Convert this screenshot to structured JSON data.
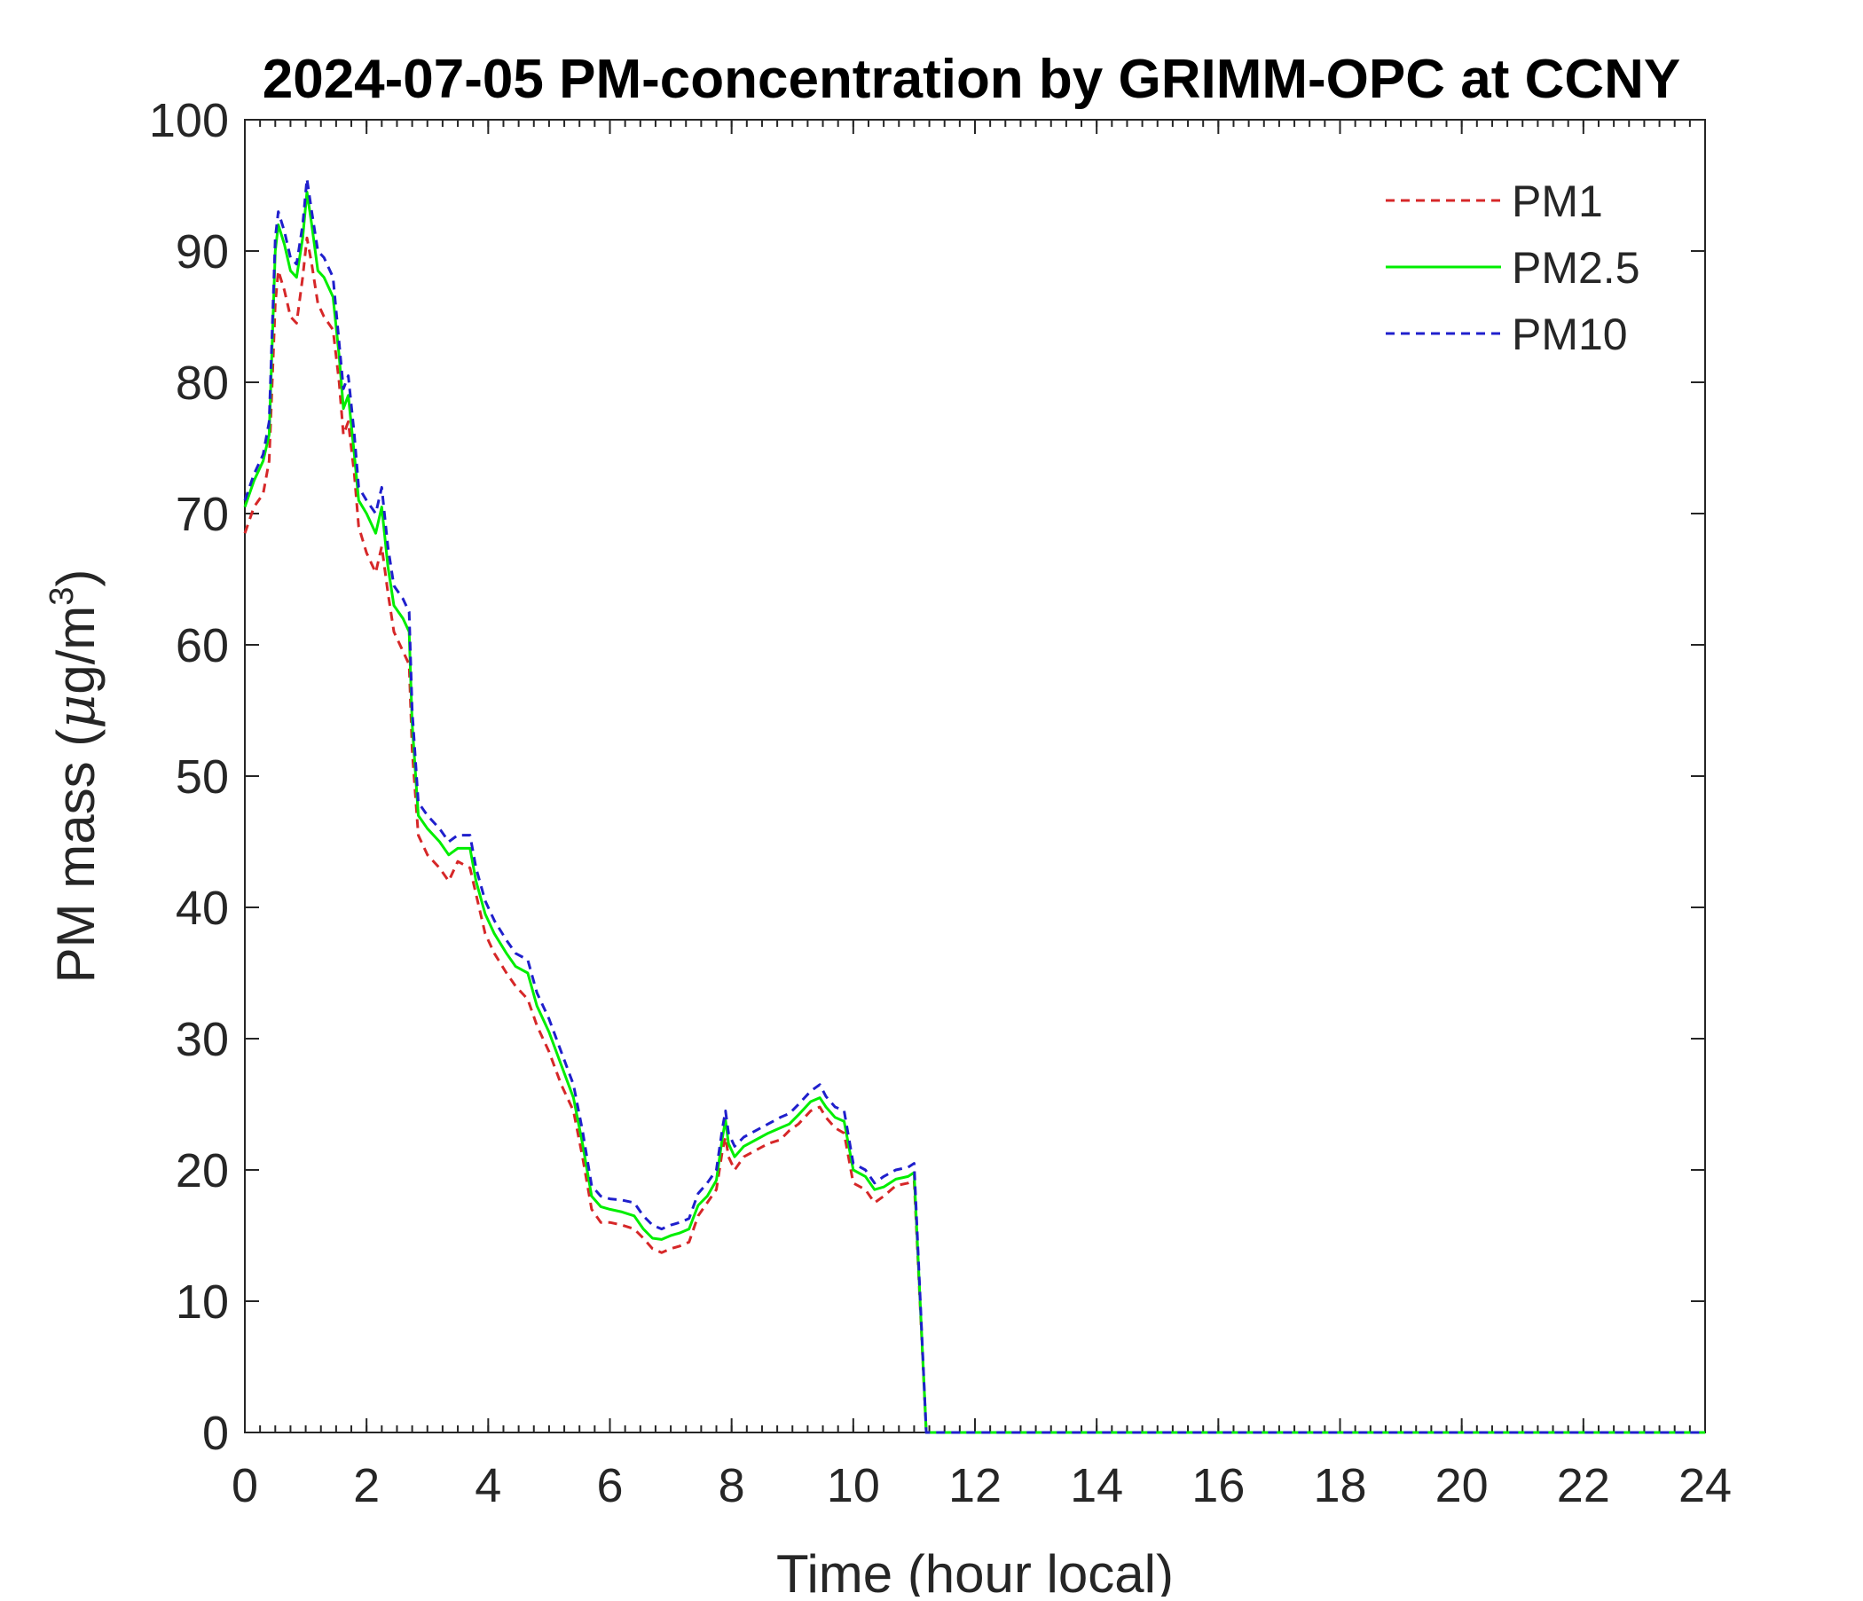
{
  "chart_data": {
    "type": "line",
    "title": "2024-07-05 PM-concentration by GRIMM-OPC at CCNY",
    "xlabel": "Time (hour local)",
    "ylabel_main": "PM mass (",
    "ylabel_mu": "μ",
    "ylabel_unit": "g/m",
    "ylabel_exp": "3",
    "ylabel_close": ")",
    "xlim": [
      0,
      24
    ],
    "ylim": [
      0,
      100
    ],
    "xticks": [
      0,
      2,
      4,
      6,
      8,
      10,
      12,
      14,
      16,
      18,
      20,
      22,
      24
    ],
    "yticks": [
      0,
      10,
      20,
      30,
      40,
      50,
      60,
      70,
      80,
      90,
      100
    ],
    "grid": false,
    "legend_position": "top-right",
    "series": [
      {
        "name": "PM1",
        "color": "#d62728",
        "style": "dashed",
        "points": [
          [
            0,
            68.5
          ],
          [
            0.15,
            70.5
          ],
          [
            0.3,
            71.5
          ],
          [
            0.4,
            74
          ],
          [
            0.5,
            86
          ],
          [
            0.55,
            88.5
          ],
          [
            0.65,
            87
          ],
          [
            0.75,
            85
          ],
          [
            0.85,
            84.5
          ],
          [
            0.95,
            88
          ],
          [
            1.02,
            91
          ],
          [
            1.1,
            89
          ],
          [
            1.2,
            86
          ],
          [
            1.3,
            85
          ],
          [
            1.45,
            84
          ],
          [
            1.55,
            80
          ],
          [
            1.62,
            76
          ],
          [
            1.7,
            77
          ],
          [
            1.8,
            73
          ],
          [
            1.87,
            69
          ],
          [
            2.0,
            67
          ],
          [
            2.15,
            65.5
          ],
          [
            2.25,
            67.5
          ],
          [
            2.35,
            64
          ],
          [
            2.45,
            61
          ],
          [
            2.6,
            59.5
          ],
          [
            2.7,
            58.5
          ],
          [
            2.75,
            52
          ],
          [
            2.85,
            45.5
          ],
          [
            3.0,
            44
          ],
          [
            3.2,
            43
          ],
          [
            3.35,
            42
          ],
          [
            3.5,
            43.5
          ],
          [
            3.7,
            43
          ],
          [
            3.8,
            41
          ],
          [
            3.95,
            38
          ],
          [
            4.1,
            36.5
          ],
          [
            4.3,
            35
          ],
          [
            4.45,
            34
          ],
          [
            4.65,
            33
          ],
          [
            4.8,
            31
          ],
          [
            5.0,
            29
          ],
          [
            5.2,
            26.5
          ],
          [
            5.4,
            24.5
          ],
          [
            5.55,
            21
          ],
          [
            5.7,
            17
          ],
          [
            5.85,
            16
          ],
          [
            6.0,
            16
          ],
          [
            6.2,
            15.8
          ],
          [
            6.4,
            15.5
          ],
          [
            6.55,
            14.8
          ],
          [
            6.7,
            14
          ],
          [
            6.85,
            13.7
          ],
          [
            7.0,
            14
          ],
          [
            7.15,
            14.2
          ],
          [
            7.3,
            14.5
          ],
          [
            7.45,
            16.5
          ],
          [
            7.6,
            17.5
          ],
          [
            7.75,
            18.5
          ],
          [
            7.85,
            21.5
          ],
          [
            7.9,
            22.5
          ],
          [
            7.95,
            21
          ],
          [
            8.05,
            20
          ],
          [
            8.2,
            21
          ],
          [
            8.4,
            21.5
          ],
          [
            8.6,
            22
          ],
          [
            8.8,
            22.3
          ],
          [
            8.95,
            23
          ],
          [
            9.1,
            23.5
          ],
          [
            9.3,
            24.5
          ],
          [
            9.45,
            24.8
          ],
          [
            9.55,
            24
          ],
          [
            9.7,
            23.2
          ],
          [
            9.85,
            22.8
          ],
          [
            10.0,
            19
          ],
          [
            10.2,
            18.5
          ],
          [
            10.35,
            17.5
          ],
          [
            10.5,
            18
          ],
          [
            10.7,
            18.8
          ],
          [
            10.9,
            19
          ],
          [
            11.0,
            19.2
          ],
          [
            11.2,
            0
          ],
          [
            24,
            0
          ]
        ]
      },
      {
        "name": "PM2.5",
        "color": "#00ee00",
        "style": "solid",
        "points": [
          [
            0,
            70.5
          ],
          [
            0.15,
            72.5
          ],
          [
            0.3,
            74
          ],
          [
            0.4,
            76
          ],
          [
            0.5,
            90
          ],
          [
            0.55,
            92
          ],
          [
            0.65,
            90.5
          ],
          [
            0.75,
            88.5
          ],
          [
            0.85,
            88
          ],
          [
            0.95,
            91
          ],
          [
            1.02,
            94.5
          ],
          [
            1.1,
            92
          ],
          [
            1.2,
            88.5
          ],
          [
            1.3,
            88
          ],
          [
            1.45,
            86.5
          ],
          [
            1.55,
            82
          ],
          [
            1.62,
            78
          ],
          [
            1.7,
            79
          ],
          [
            1.8,
            74.5
          ],
          [
            1.87,
            71
          ],
          [
            2.0,
            70
          ],
          [
            2.15,
            68.5
          ],
          [
            2.25,
            70.5
          ],
          [
            2.35,
            66
          ],
          [
            2.45,
            63
          ],
          [
            2.6,
            62
          ],
          [
            2.7,
            61
          ],
          [
            2.75,
            54
          ],
          [
            2.85,
            47
          ],
          [
            3.0,
            46
          ],
          [
            3.2,
            45
          ],
          [
            3.35,
            44
          ],
          [
            3.5,
            44.5
          ],
          [
            3.7,
            44.5
          ],
          [
            3.8,
            42
          ],
          [
            3.95,
            39.5
          ],
          [
            4.1,
            38
          ],
          [
            4.3,
            36.5
          ],
          [
            4.45,
            35.5
          ],
          [
            4.65,
            35
          ],
          [
            4.8,
            32.5
          ],
          [
            5.0,
            30.5
          ],
          [
            5.2,
            28
          ],
          [
            5.4,
            25.5
          ],
          [
            5.55,
            22
          ],
          [
            5.7,
            18
          ],
          [
            5.85,
            17.2
          ],
          [
            6.0,
            17
          ],
          [
            6.2,
            16.8
          ],
          [
            6.4,
            16.5
          ],
          [
            6.55,
            15.5
          ],
          [
            6.7,
            14.8
          ],
          [
            6.85,
            14.7
          ],
          [
            7.0,
            15
          ],
          [
            7.15,
            15.2
          ],
          [
            7.3,
            15.5
          ],
          [
            7.45,
            17.3
          ],
          [
            7.6,
            18
          ],
          [
            7.75,
            19.2
          ],
          [
            7.85,
            22.5
          ],
          [
            7.9,
            23.8
          ],
          [
            7.95,
            22
          ],
          [
            8.05,
            21
          ],
          [
            8.2,
            21.8
          ],
          [
            8.4,
            22.3
          ],
          [
            8.6,
            22.8
          ],
          [
            8.8,
            23.2
          ],
          [
            8.95,
            23.5
          ],
          [
            9.1,
            24.2
          ],
          [
            9.3,
            25.2
          ],
          [
            9.45,
            25.5
          ],
          [
            9.55,
            24.8
          ],
          [
            9.7,
            24
          ],
          [
            9.85,
            23.7
          ],
          [
            10.0,
            20
          ],
          [
            10.2,
            19.5
          ],
          [
            10.35,
            18.5
          ],
          [
            10.5,
            18.7
          ],
          [
            10.7,
            19.3
          ],
          [
            10.9,
            19.5
          ],
          [
            11.0,
            19.8
          ],
          [
            11.2,
            0
          ],
          [
            24,
            0
          ]
        ]
      },
      {
        "name": "PM10",
        "color": "#1f1fcc",
        "style": "dashed",
        "points": [
          [
            0,
            71
          ],
          [
            0.15,
            73
          ],
          [
            0.3,
            74.5
          ],
          [
            0.4,
            77
          ],
          [
            0.5,
            91
          ],
          [
            0.55,
            93
          ],
          [
            0.65,
            91.5
          ],
          [
            0.75,
            89.5
          ],
          [
            0.85,
            89
          ],
          [
            0.95,
            92
          ],
          [
            1.02,
            95.5
          ],
          [
            1.1,
            93
          ],
          [
            1.2,
            90
          ],
          [
            1.3,
            89.5
          ],
          [
            1.45,
            88
          ],
          [
            1.55,
            83
          ],
          [
            1.62,
            79.5
          ],
          [
            1.7,
            80.5
          ],
          [
            1.8,
            76
          ],
          [
            1.87,
            72
          ],
          [
            2.0,
            71
          ],
          [
            2.15,
            70
          ],
          [
            2.25,
            72
          ],
          [
            2.35,
            67.5
          ],
          [
            2.45,
            64.5
          ],
          [
            2.6,
            63.5
          ],
          [
            2.7,
            62.5
          ],
          [
            2.75,
            55
          ],
          [
            2.85,
            48
          ],
          [
            3.0,
            47
          ],
          [
            3.2,
            46
          ],
          [
            3.35,
            45
          ],
          [
            3.5,
            45.5
          ],
          [
            3.7,
            45.5
          ],
          [
            3.8,
            43
          ],
          [
            3.95,
            40.5
          ],
          [
            4.1,
            39
          ],
          [
            4.3,
            37.5
          ],
          [
            4.45,
            36.5
          ],
          [
            4.65,
            36
          ],
          [
            4.8,
            33.5
          ],
          [
            5.0,
            31.5
          ],
          [
            5.2,
            29
          ],
          [
            5.4,
            26.5
          ],
          [
            5.55,
            23
          ],
          [
            5.7,
            18.8
          ],
          [
            5.85,
            18
          ],
          [
            6.0,
            17.8
          ],
          [
            6.2,
            17.7
          ],
          [
            6.4,
            17.5
          ],
          [
            6.55,
            16.5
          ],
          [
            6.7,
            15.8
          ],
          [
            6.85,
            15.5
          ],
          [
            7.0,
            15.8
          ],
          [
            7.15,
            16
          ],
          [
            7.3,
            16.3
          ],
          [
            7.45,
            18.2
          ],
          [
            7.6,
            19
          ],
          [
            7.75,
            20
          ],
          [
            7.85,
            23.2
          ],
          [
            7.9,
            24.5
          ],
          [
            7.95,
            22.8
          ],
          [
            8.05,
            21.8
          ],
          [
            8.2,
            22.5
          ],
          [
            8.4,
            23
          ],
          [
            8.6,
            23.5
          ],
          [
            8.8,
            24
          ],
          [
            8.95,
            24.3
          ],
          [
            9.1,
            25
          ],
          [
            9.3,
            26
          ],
          [
            9.45,
            26.5
          ],
          [
            9.55,
            25.6
          ],
          [
            9.7,
            24.8
          ],
          [
            9.85,
            24.5
          ],
          [
            10.0,
            20.5
          ],
          [
            10.2,
            20
          ],
          [
            10.35,
            19
          ],
          [
            10.5,
            19.5
          ],
          [
            10.7,
            20
          ],
          [
            10.9,
            20.2
          ],
          [
            11.0,
            20.5
          ],
          [
            11.2,
            0
          ],
          [
            24,
            0
          ]
        ]
      }
    ]
  }
}
